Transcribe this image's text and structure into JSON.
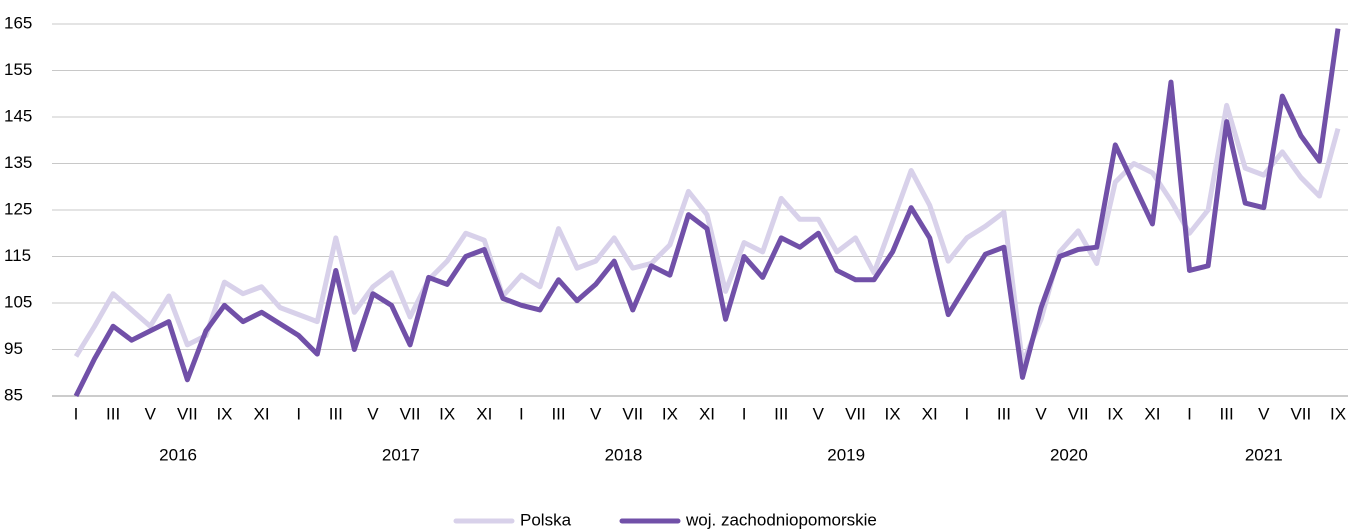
{
  "chart_data": {
    "type": "line",
    "categories": [
      "I",
      null,
      "III",
      null,
      "V",
      null,
      "VII",
      null,
      "IX",
      null,
      "XI",
      null,
      "I",
      null,
      "III",
      null,
      "V",
      null,
      "VII",
      null,
      "IX",
      null,
      "XI",
      null,
      "I",
      null,
      "III",
      null,
      "V",
      null,
      "VII",
      null,
      "IX",
      null,
      "XI",
      null,
      "I",
      null,
      "III",
      null,
      "V",
      null,
      "VII",
      null,
      "IX",
      null,
      "XI",
      null,
      "I",
      null,
      "III",
      null,
      "V",
      null,
      "VII",
      null,
      "IX",
      null,
      "XI",
      null,
      "I",
      null,
      "III",
      null,
      "V",
      null,
      "VII",
      null,
      "IX"
    ],
    "years": [
      "2016",
      "2017",
      "2018",
      "2019",
      "2020",
      "2021"
    ],
    "series": [
      {
        "name": "Polska",
        "color": "#d8d1ea",
        "values": [
          93.5,
          100,
          107,
          103.5,
          100,
          106.5,
          96,
          98,
          109.5,
          107,
          108.5,
          104,
          102.5,
          101,
          119,
          103,
          108.5,
          111.5,
          102,
          110,
          114,
          120,
          118.5,
          106.5,
          111,
          108.5,
          121,
          112.5,
          114,
          119,
          112.5,
          113.5,
          117.5,
          129,
          124,
          107.5,
          118,
          116,
          127.5,
          123,
          123,
          116,
          119,
          111.5,
          122.5,
          133.5,
          126,
          114,
          119,
          121.5,
          124.5,
          92,
          101.5,
          116,
          120.5,
          113.5,
          131,
          135,
          133,
          127,
          120,
          125,
          147.5,
          134,
          132.5,
          137.5,
          132,
          128,
          142.5
        ]
      },
      {
        "name": "woj. zachodniopomorskie",
        "color": "#7150a8",
        "values": [
          85,
          93,
          100,
          97,
          99,
          101,
          88.5,
          99,
          104.5,
          101,
          103,
          100.5,
          98,
          94,
          112,
          95,
          107,
          104.5,
          96,
          110.5,
          109,
          115,
          116.5,
          106,
          104.5,
          103.5,
          110,
          105.5,
          109,
          114,
          103.5,
          113,
          111,
          124,
          121,
          101.5,
          115,
          110.5,
          119,
          117,
          120,
          112,
          110,
          110,
          116,
          125.5,
          119,
          102.5,
          109,
          115.5,
          117,
          89,
          104,
          115,
          116.5,
          117,
          139,
          130.5,
          122,
          152.5,
          112,
          113,
          144,
          126.5,
          125.5,
          149.5,
          141,
          135.5,
          164
        ]
      }
    ],
    "ylim": [
      85,
      165
    ],
    "yticks": [
      85,
      95,
      105,
      115,
      125,
      135,
      145,
      155,
      165
    ],
    "grid": true
  }
}
